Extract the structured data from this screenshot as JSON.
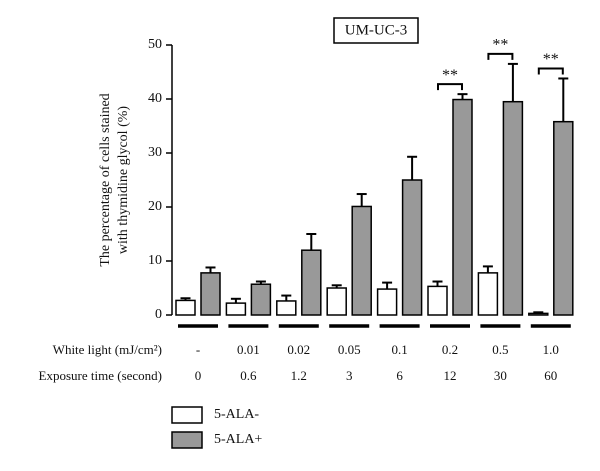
{
  "chart_data": {
    "type": "bar",
    "title": "UM-UC-3",
    "ylabel": [
      "The percentage of cells stained",
      "with thymidine glycol (%)"
    ],
    "row_labels": [
      "White light (mJ/cm²)",
      "Exposure time (second)"
    ],
    "categories": [
      "-",
      "0.01",
      "0.02",
      "0.05",
      "0.1",
      "0.2",
      "0.5",
      "1.0"
    ],
    "exposure_time": [
      "0",
      "0.6",
      "1.2",
      "3",
      "6",
      "12",
      "30",
      "60"
    ],
    "series": [
      {
        "name": "5-ALA-",
        "color": "#ffffff",
        "values": [
          2.7,
          2.2,
          2.6,
          5.0,
          4.8,
          5.3,
          7.8,
          0.3
        ],
        "errors": [
          0.4,
          0.8,
          1.0,
          0.5,
          1.2,
          0.9,
          1.2,
          0.2
        ]
      },
      {
        "name": "5-ALA+",
        "color": "#999999",
        "values": [
          7.8,
          5.7,
          12.0,
          20.1,
          25.0,
          39.9,
          39.5,
          35.8
        ],
        "errors": [
          1.0,
          0.5,
          3.0,
          2.3,
          4.3,
          1.0,
          7.0,
          8.0
        ]
      }
    ],
    "annotations": [
      {
        "text": "**",
        "group": "0.2"
      },
      {
        "text": "**",
        "group": "0.5"
      },
      {
        "text": "**",
        "group": "1.0"
      }
    ],
    "ylim": [
      0,
      50
    ],
    "yticks": [
      0,
      10,
      20,
      30,
      40,
      50
    ]
  }
}
